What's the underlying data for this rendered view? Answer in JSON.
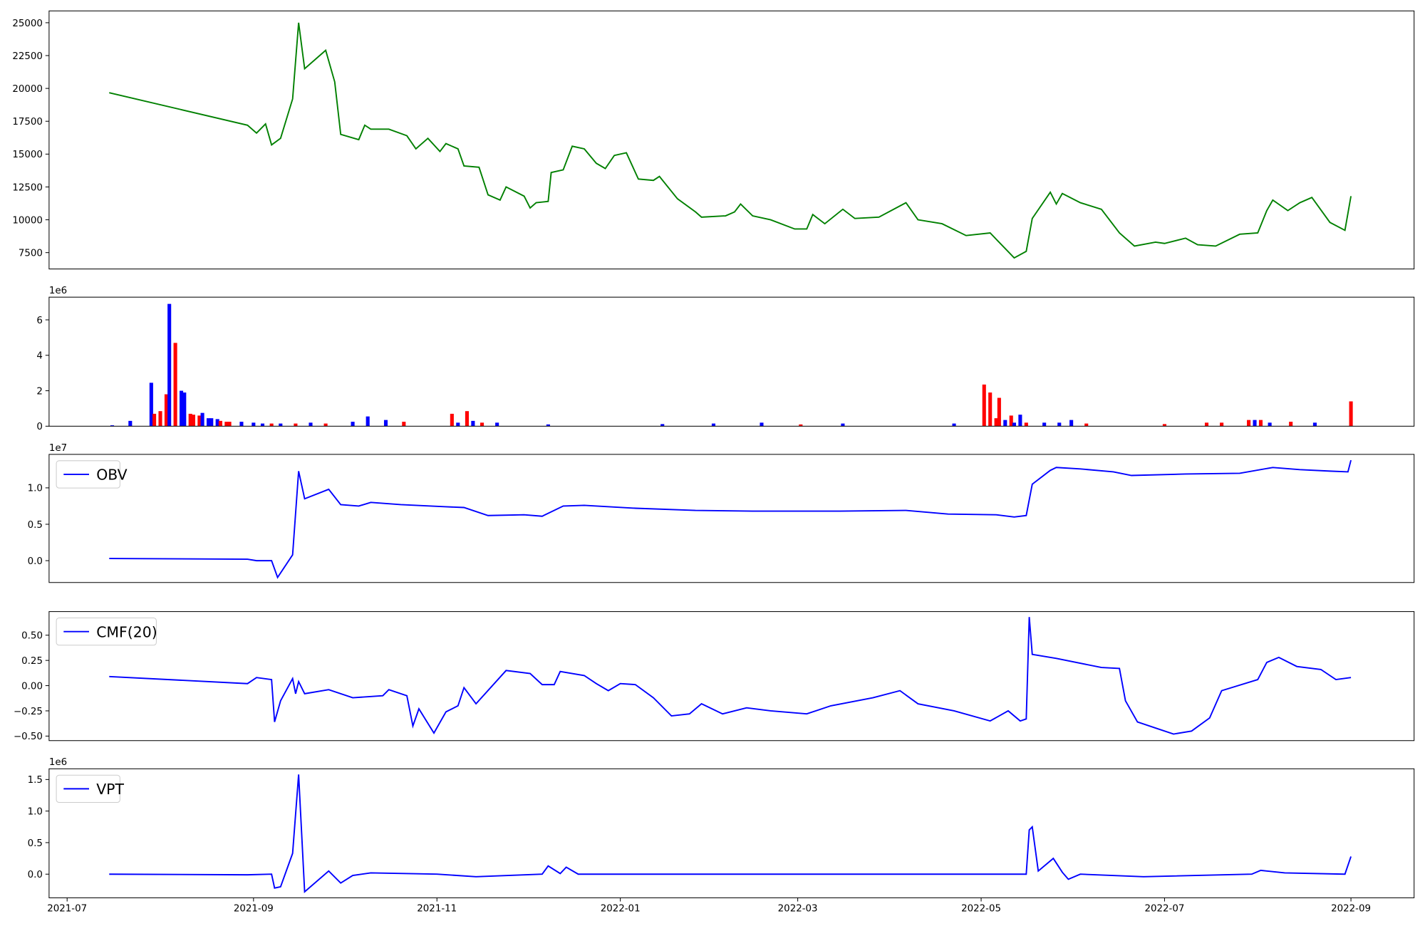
{
  "chart_data": [
    {
      "type": "line",
      "xlim": [
        "2021-06-25",
        "2022-09-22"
      ],
      "ylim": [
        6255,
        25900
      ],
      "yticks": [
        7500,
        10000,
        12500,
        15000,
        17500,
        20000,
        22500,
        25000
      ],
      "series": [
        {
          "color": "#008000",
          "x": [
            "2021-07-15",
            "2021-08-30",
            "2021-09-02",
            "2021-09-05",
            "2021-09-07",
            "2021-09-10",
            "2021-09-14",
            "2021-09-16",
            "2021-09-18",
            "2021-09-25",
            "2021-09-28",
            "2021-09-30",
            "2021-10-06",
            "2021-10-08",
            "2021-10-10",
            "2021-10-16",
            "2021-10-22",
            "2021-10-25",
            "2021-10-29",
            "2021-11-02",
            "2021-11-04",
            "2021-11-08",
            "2021-11-10",
            "2021-11-15",
            "2021-11-18",
            "2021-11-22",
            "2021-11-24",
            "2021-11-30",
            "2021-12-02",
            "2021-12-04",
            "2021-12-08",
            "2021-12-09",
            "2021-12-13",
            "2021-12-16",
            "2021-12-20",
            "2021-12-24",
            "2021-12-27",
            "2021-12-30",
            "2022-01-03",
            "2022-01-07",
            "2022-01-12",
            "2022-01-14",
            "2022-01-20",
            "2022-01-26",
            "2022-01-28",
            "2022-02-05",
            "2022-02-08",
            "2022-02-10",
            "2022-02-14",
            "2022-02-20",
            "2022-02-28",
            "2022-03-04",
            "2022-03-06",
            "2022-03-10",
            "2022-03-16",
            "2022-03-20",
            "2022-03-28",
            "2022-04-06",
            "2022-04-10",
            "2022-04-18",
            "2022-04-26",
            "2022-05-04",
            "2022-05-12",
            "2022-05-16",
            "2022-05-18",
            "2022-05-24",
            "2022-05-26",
            "2022-05-28",
            "2022-06-03",
            "2022-06-10",
            "2022-06-16",
            "2022-06-21",
            "2022-06-28",
            "2022-07-01",
            "2022-07-08",
            "2022-07-12",
            "2022-07-18",
            "2022-07-26",
            "2022-08-01",
            "2022-08-04",
            "2022-08-06",
            "2022-08-11",
            "2022-08-15",
            "2022-08-19",
            "2022-08-25",
            "2022-08-30",
            "2022-09-01"
          ],
          "values": [
            19670,
            17200,
            16600,
            17300,
            15700,
            16200,
            19200,
            25000,
            21500,
            22900,
            20500,
            16500,
            16100,
            17200,
            16900,
            16900,
            16400,
            15400,
            16200,
            15200,
            15800,
            15400,
            14100,
            14000,
            11900,
            11500,
            12500,
            11800,
            10900,
            11300,
            11400,
            13600,
            13800,
            15600,
            15400,
            14300,
            13900,
            14900,
            15100,
            13100,
            13000,
            13300,
            11600,
            10600,
            10200,
            10300,
            10600,
            11200,
            10300,
            10000,
            9300,
            9300,
            10400,
            9700,
            10800,
            10100,
            10200,
            11300,
            10000,
            9700,
            8800,
            9000,
            7100,
            7600,
            10100,
            12100,
            11200,
            12000,
            11300,
            10800,
            9000,
            8000,
            8300,
            8200,
            8600,
            8100,
            8000,
            8900,
            9000,
            10700,
            11500,
            10700,
            11300,
            11700,
            9800,
            9200,
            11800
          ]
        }
      ]
    },
    {
      "type": "bar",
      "xlim": [
        "2021-06-25",
        "2022-09-22"
      ],
      "ylim": [
        0,
        7280000
      ],
      "offset_text": "1e6",
      "yticks": [
        0,
        {
          "value": 2000000,
          "label": "2"
        },
        {
          "value": 4000000,
          "label": "4"
        },
        {
          "value": 6000000,
          "label": "6"
        }
      ],
      "series": [
        {
          "x": [
            "2021-07-16",
            "2021-07-22",
            "2021-07-29",
            "2021-07-30",
            "2021-08-01",
            "2021-08-03",
            "2021-08-04",
            "2021-08-06",
            "2021-08-08",
            "2021-08-09",
            "2021-08-11",
            "2021-08-12",
            "2021-08-14",
            "2021-08-15",
            "2021-08-17",
            "2021-08-18",
            "2021-08-20",
            "2021-08-21",
            "2021-08-23",
            "2021-08-24",
            "2021-08-28",
            "2021-09-01",
            "2021-09-04",
            "2021-09-07",
            "2021-09-10",
            "2021-09-15",
            "2021-09-20",
            "2021-09-25",
            "2021-10-04",
            "2021-10-09",
            "2021-10-15",
            "2021-10-21",
            "2021-11-06",
            "2021-11-08",
            "2021-11-11",
            "2021-11-13",
            "2021-11-16",
            "2021-11-21",
            "2021-12-08",
            "2022-01-15",
            "2022-02-01",
            "2022-02-17",
            "2022-03-02",
            "2022-03-16",
            "2022-04-22",
            "2022-05-02",
            "2022-05-04",
            "2022-05-06",
            "2022-05-07",
            "2022-05-09",
            "2022-05-11",
            "2022-05-12",
            "2022-05-14",
            "2022-05-16",
            "2022-05-22",
            "2022-05-27",
            "2022-05-31",
            "2022-06-05",
            "2022-07-01",
            "2022-07-15",
            "2022-07-20",
            "2022-07-29",
            "2022-07-31",
            "2022-08-02",
            "2022-08-05",
            "2022-08-12",
            "2022-08-20",
            "2022-09-01"
          ],
          "values": [
            50000,
            300000,
            2450000,
            700000,
            850000,
            1800000,
            6900000,
            4700000,
            2000000,
            1900000,
            700000,
            650000,
            600000,
            750000,
            450000,
            450000,
            400000,
            300000,
            250000,
            250000,
            250000,
            200000,
            150000,
            150000,
            150000,
            150000,
            200000,
            150000,
            250000,
            550000,
            350000,
            250000,
            700000,
            200000,
            850000,
            300000,
            200000,
            200000,
            100000,
            120000,
            150000,
            200000,
            100000,
            150000,
            150000,
            2350000,
            1900000,
            450000,
            1600000,
            350000,
            600000,
            200000,
            650000,
            200000,
            200000,
            200000,
            350000,
            150000,
            120000,
            200000,
            200000,
            350000,
            350000,
            350000,
            200000,
            250000,
            200000,
            1400000
          ],
          "colors": [
            "#0000ff",
            "#0000ff",
            "#0000ff",
            "#ff0000",
            "#ff0000",
            "#ff0000",
            "#0000ff",
            "#ff0000",
            "#0000ff",
            "#0000ff",
            "#ff0000",
            "#ff0000",
            "#ff0000",
            "#0000ff",
            "#0000ff",
            "#0000ff",
            "#0000ff",
            "#ff0000",
            "#ff0000",
            "#ff0000",
            "#0000ff",
            "#0000ff",
            "#0000ff",
            "#ff0000",
            "#0000ff",
            "#ff0000",
            "#0000ff",
            "#ff0000",
            "#0000ff",
            "#0000ff",
            "#0000ff",
            "#ff0000",
            "#ff0000",
            "#0000ff",
            "#ff0000",
            "#0000ff",
            "#ff0000",
            "#0000ff",
            "#0000ff",
            "#0000ff",
            "#0000ff",
            "#0000ff",
            "#ff0000",
            "#0000ff",
            "#0000ff",
            "#ff0000",
            "#ff0000",
            "#ff0000",
            "#ff0000",
            "#0000ff",
            "#ff0000",
            "#0000ff",
            "#0000ff",
            "#ff0000",
            "#0000ff",
            "#0000ff",
            "#0000ff",
            "#ff0000",
            "#ff0000",
            "#ff0000",
            "#ff0000",
            "#ff0000",
            "#0000ff",
            "#ff0000",
            "#0000ff",
            "#ff0000",
            "#0000ff",
            "#ff0000"
          ]
        }
      ]
    },
    {
      "type": "line",
      "xlim": [
        "2021-06-25",
        "2022-09-22"
      ],
      "ylim": [
        -3000000,
        14600000
      ],
      "offset_text": "1e7",
      "legend": "upper left",
      "yticks": [
        {
          "value": 0,
          "label": "0.0"
        },
        {
          "value": 5000000,
          "label": "0.5"
        },
        {
          "value": 10000000,
          "label": "1.0"
        }
      ],
      "series": [
        {
          "name": "OBV",
          "color": "#0000ff",
          "x": [
            "2021-07-15",
            "2021-08-30",
            "2021-09-02",
            "2021-09-07",
            "2021-09-09",
            "2021-09-14",
            "2021-09-16",
            "2021-09-18",
            "2021-09-26",
            "2021-09-30",
            "2021-10-06",
            "2021-10-10",
            "2021-10-20",
            "2021-11-04",
            "2021-11-10",
            "2021-11-18",
            "2021-11-30",
            "2021-12-06",
            "2021-12-13",
            "2021-12-20",
            "2022-01-06",
            "2022-01-26",
            "2022-02-14",
            "2022-03-15",
            "2022-04-06",
            "2022-04-20",
            "2022-05-06",
            "2022-05-12",
            "2022-05-16",
            "2022-05-18",
            "2022-05-24",
            "2022-05-26",
            "2022-06-03",
            "2022-06-14",
            "2022-06-20",
            "2022-07-08",
            "2022-07-26",
            "2022-08-06",
            "2022-08-15",
            "2022-08-25",
            "2022-08-31",
            "2022-09-01"
          ],
          "values": [
            300000,
            200000,
            0,
            0,
            -2300000,
            800000,
            12300000,
            8500000,
            9800000,
            7700000,
            7500000,
            8000000,
            7700000,
            7400000,
            7300000,
            6200000,
            6300000,
            6100000,
            7500000,
            7600000,
            7200000,
            6900000,
            6800000,
            6800000,
            6900000,
            6400000,
            6300000,
            6000000,
            6200000,
            10500000,
            12400000,
            12800000,
            12600000,
            12200000,
            11700000,
            11900000,
            12000000,
            12800000,
            12500000,
            12300000,
            12200000,
            13800000
          ]
        }
      ]
    },
    {
      "type": "line",
      "xlim": [
        "2021-06-25",
        "2022-09-22"
      ],
      "ylim": [
        -0.545,
        0.734
      ],
      "legend": "upper left",
      "yticks": [
        {
          "value": -0.5,
          "label": "−0.50"
        },
        {
          "value": -0.25,
          "label": "−0.25"
        },
        {
          "value": 0,
          "label": "0.00"
        },
        {
          "value": 0.25,
          "label": "0.25"
        },
        {
          "value": 0.5,
          "label": "0.50"
        }
      ],
      "series": [
        {
          "name": "CMF(20)",
          "color": "#0000ff",
          "x": [
            "2021-07-15",
            "2021-08-30",
            "2021-09-02",
            "2021-09-07",
            "2021-09-08",
            "2021-09-10",
            "2021-09-14",
            "2021-09-15",
            "2021-09-16",
            "2021-09-18",
            "2021-09-26",
            "2021-10-04",
            "2021-10-14",
            "2021-10-16",
            "2021-10-22",
            "2021-10-24",
            "2021-10-26",
            "2021-10-31",
            "2021-11-04",
            "2021-11-08",
            "2021-11-10",
            "2021-11-14",
            "2021-11-24",
            "2021-12-02",
            "2021-12-06",
            "2021-12-10",
            "2021-12-12",
            "2021-12-20",
            "2021-12-24",
            "2021-12-28",
            "2022-01-01",
            "2022-01-06",
            "2022-01-12",
            "2022-01-18",
            "2022-01-24",
            "2022-01-28",
            "2022-02-04",
            "2022-02-12",
            "2022-02-20",
            "2022-03-04",
            "2022-03-12",
            "2022-03-26",
            "2022-04-04",
            "2022-04-10",
            "2022-04-22",
            "2022-05-04",
            "2022-05-10",
            "2022-05-14",
            "2022-05-16",
            "2022-05-17",
            "2022-05-18",
            "2022-05-26",
            "2022-06-10",
            "2022-06-16",
            "2022-06-18",
            "2022-06-22",
            "2022-06-28",
            "2022-07-04",
            "2022-07-10",
            "2022-07-16",
            "2022-07-20",
            "2022-08-01",
            "2022-08-04",
            "2022-08-08",
            "2022-08-14",
            "2022-08-22",
            "2022-08-27",
            "2022-09-01"
          ],
          "values": [
            0.09,
            0.02,
            0.08,
            0.06,
            -0.36,
            -0.15,
            0.07,
            -0.08,
            0.04,
            -0.08,
            -0.04,
            -0.12,
            -0.1,
            -0.04,
            -0.1,
            -0.4,
            -0.23,
            -0.47,
            -0.26,
            -0.2,
            -0.02,
            -0.18,
            0.15,
            0.12,
            0.01,
            0.01,
            0.14,
            0.1,
            0.02,
            -0.05,
            0.02,
            0.01,
            -0.12,
            -0.3,
            -0.28,
            -0.18,
            -0.28,
            -0.22,
            -0.25,
            -0.28,
            -0.2,
            -0.12,
            -0.05,
            -0.18,
            -0.25,
            -0.35,
            -0.25,
            -0.35,
            -0.33,
            0.68,
            0.31,
            0.27,
            0.18,
            0.17,
            -0.15,
            -0.36,
            -0.42,
            -0.48,
            -0.45,
            -0.32,
            -0.05,
            0.06,
            0.23,
            0.28,
            0.19,
            0.16,
            0.06,
            0.08
          ]
        }
      ]
    },
    {
      "type": "line",
      "xlim": [
        "2021-06-25",
        "2022-09-22"
      ],
      "ylim": [
        -375000,
        1670000
      ],
      "offset_text": "1e6",
      "legend": "upper left",
      "yticks": [
        {
          "value": 0,
          "label": "0.0"
        },
        {
          "value": 500000,
          "label": "0.5"
        },
        {
          "value": 1000000,
          "label": "1.0"
        },
        {
          "value": 1500000,
          "label": "1.5"
        }
      ],
      "xticks": [
        "2021-07",
        "2021-09",
        "2021-11",
        "2022-01",
        "2022-03",
        "2022-05",
        "2022-07",
        "2022-09"
      ],
      "series": [
        {
          "name": "VPT",
          "color": "#0000ff",
          "x": [
            "2021-07-15",
            "2021-08-30",
            "2021-09-07",
            "2021-09-08",
            "2021-09-10",
            "2021-09-14",
            "2021-09-16",
            "2021-09-18",
            "2021-09-26",
            "2021-09-30",
            "2021-10-04",
            "2021-10-10",
            "2021-11-01",
            "2021-11-14",
            "2021-12-06",
            "2021-12-08",
            "2021-12-12",
            "2021-12-14",
            "2021-12-18",
            "2022-03-15",
            "2022-05-16",
            "2022-05-17",
            "2022-05-18",
            "2022-05-20",
            "2022-05-25",
            "2022-05-28",
            "2022-05-30",
            "2022-06-03",
            "2022-06-24",
            "2022-07-30",
            "2022-08-02",
            "2022-08-10",
            "2022-08-30",
            "2022-09-01"
          ],
          "values": [
            0,
            -10000,
            0,
            -220000,
            -200000,
            330000,
            1580000,
            -280000,
            50000,
            -140000,
            -20000,
            20000,
            0,
            -40000,
            0,
            130000,
            10000,
            110000,
            0,
            0,
            0,
            700000,
            750000,
            50000,
            250000,
            30000,
            -80000,
            0,
            -40000,
            0,
            60000,
            20000,
            0,
            280000
          ]
        }
      ]
    }
  ]
}
